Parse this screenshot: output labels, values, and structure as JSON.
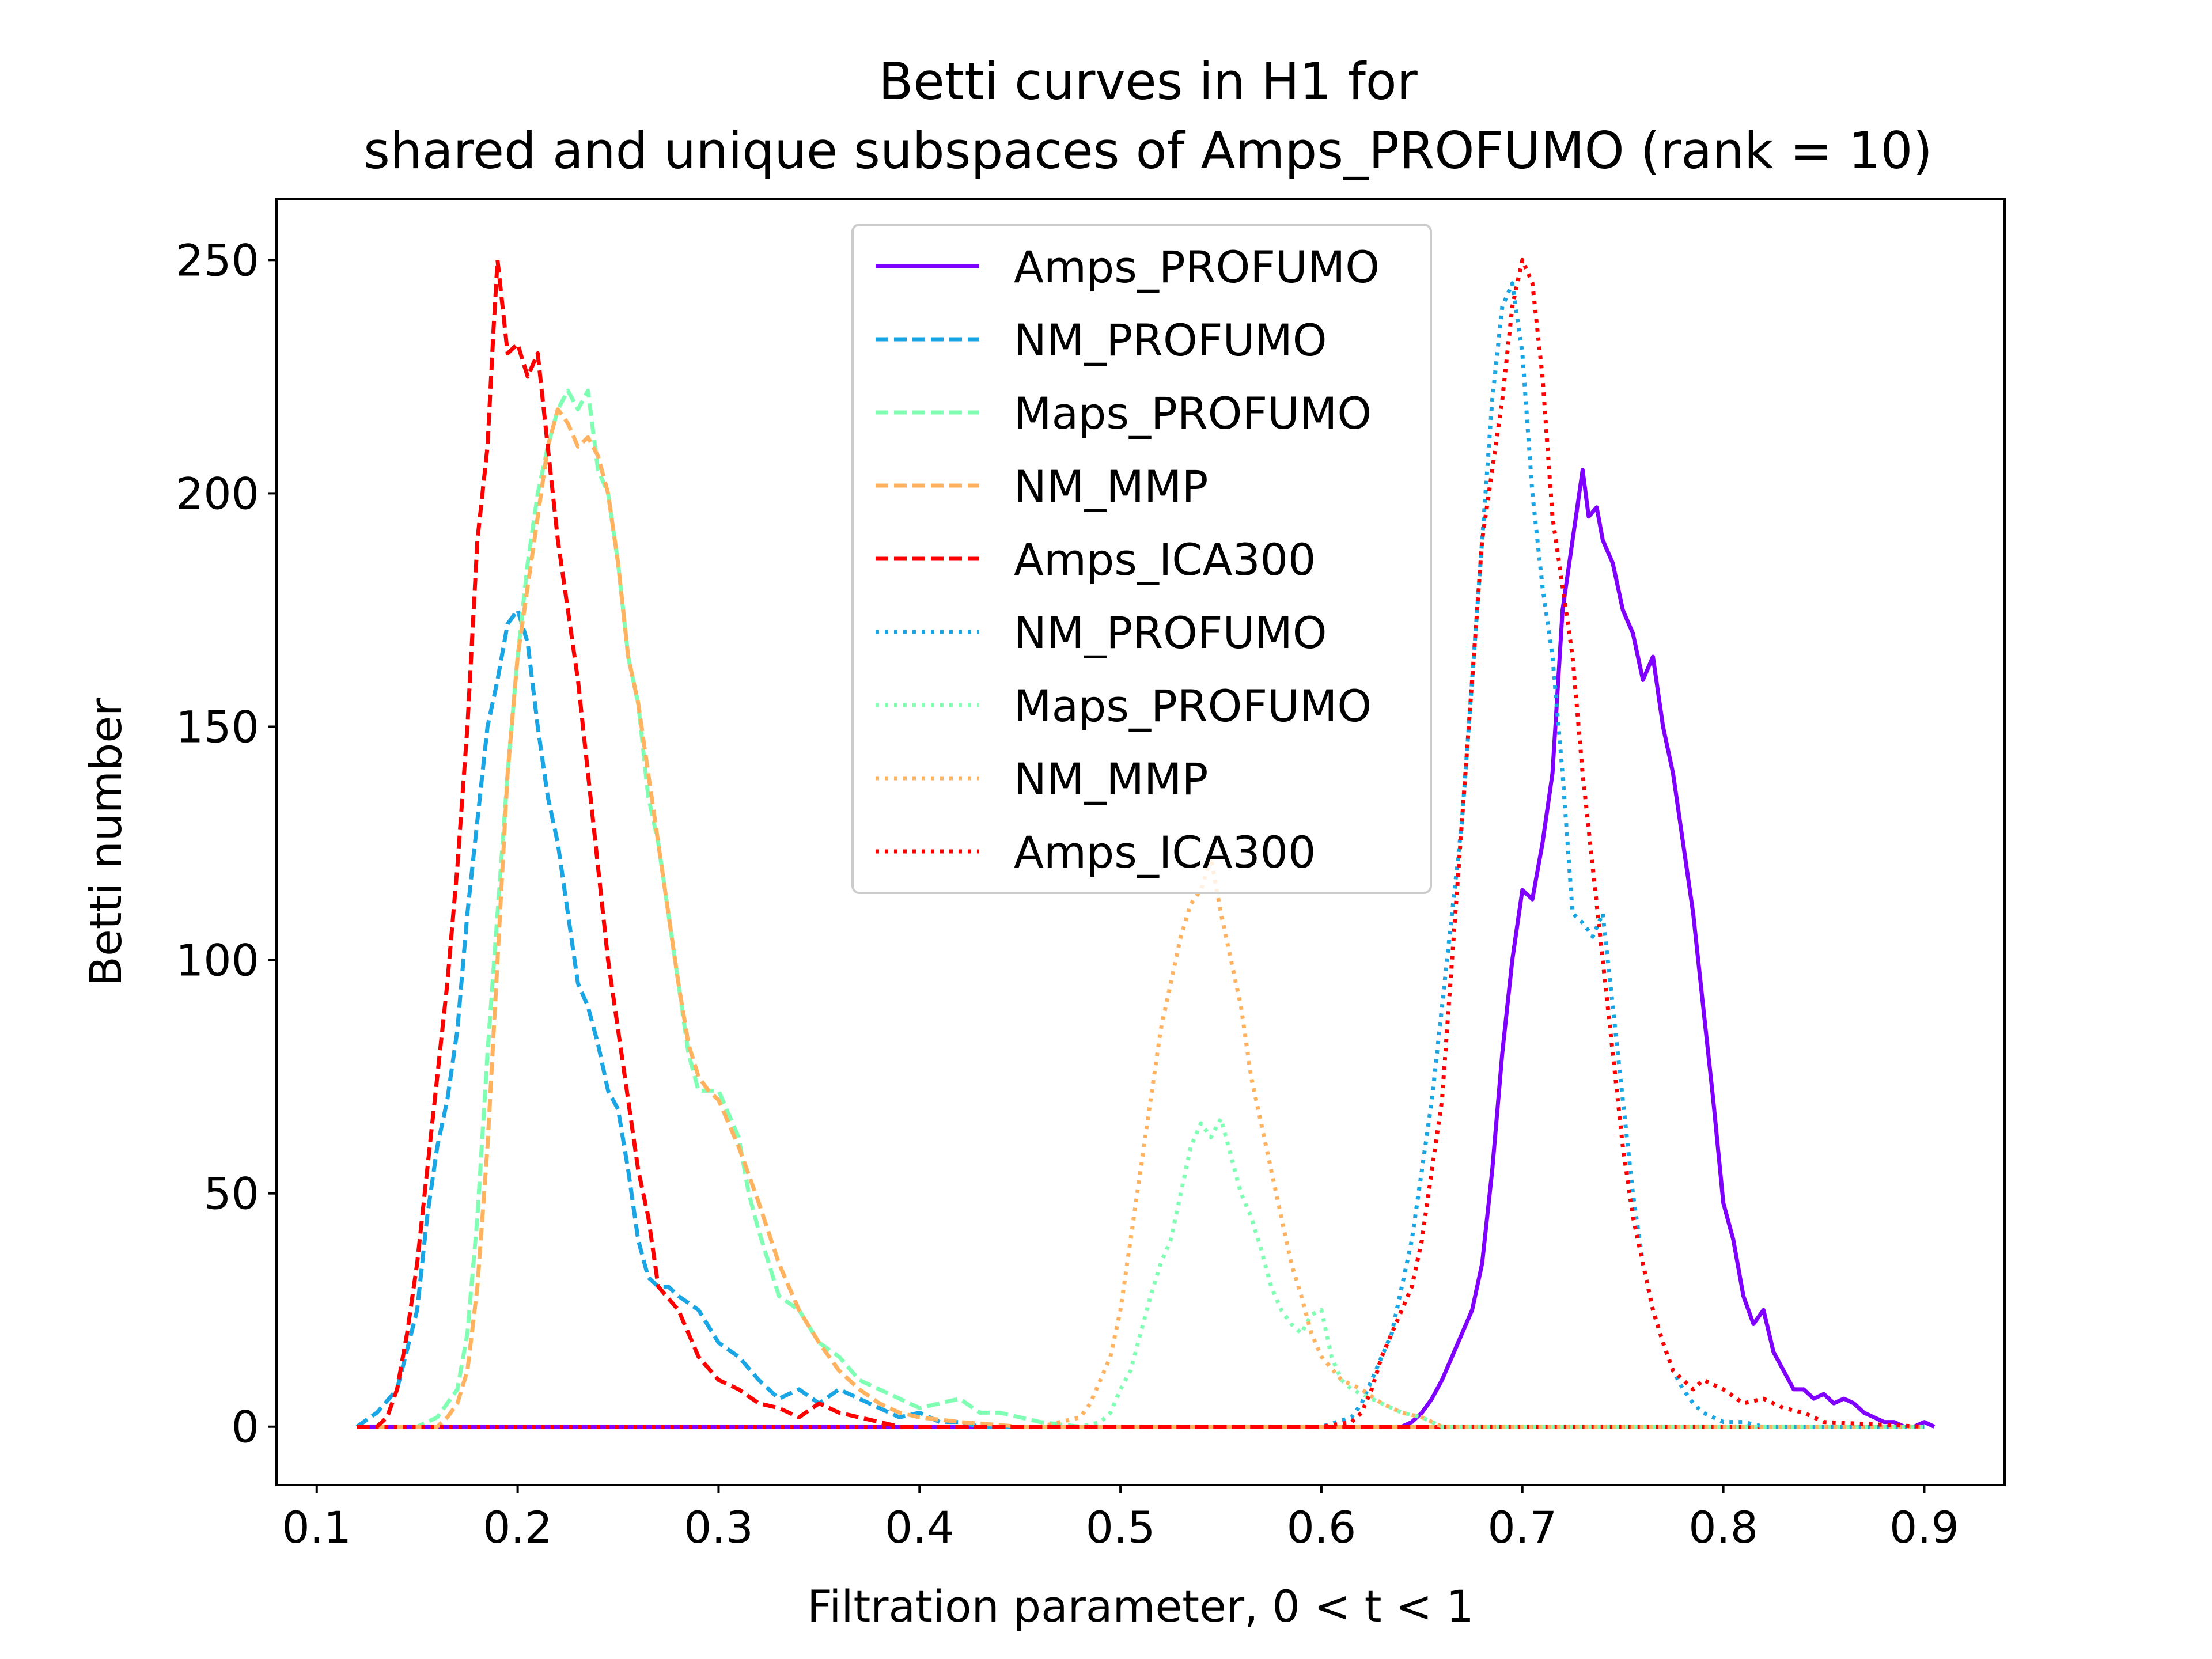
{
  "chart_data": {
    "type": "line",
    "title_line1": "Betti curves in H1 for",
    "title_line2": "shared and unique subspaces of Amps_PROFUMO (rank = 10)",
    "xlabel": "Filtration parameter, 0 < t < 1",
    "ylabel": "Betti number",
    "xlim": [
      0.08,
      0.94
    ],
    "ylim": [
      -12.5,
      263
    ],
    "xticks": [
      0.1,
      0.2,
      0.3,
      0.4,
      0.5,
      0.6,
      0.7,
      0.8,
      0.9
    ],
    "xtick_labels": [
      "0.1",
      "0.2",
      "0.3",
      "0.4",
      "0.5",
      "0.6",
      "0.7",
      "0.8",
      "0.9"
    ],
    "yticks": [
      0,
      50,
      100,
      150,
      200,
      250
    ],
    "ytick_labels": [
      "0",
      "50",
      "100",
      "150",
      "200",
      "250"
    ],
    "grid": false,
    "legend_position": "top-center",
    "series": [
      {
        "name": "Amps_PROFUMO",
        "color": "#8000ff",
        "style": "solid",
        "x": [
          0.12,
          0.64,
          0.645,
          0.65,
          0.655,
          0.66,
          0.665,
          0.67,
          0.675,
          0.68,
          0.685,
          0.69,
          0.695,
          0.7,
          0.705,
          0.71,
          0.715,
          0.72,
          0.725,
          0.73,
          0.733,
          0.737,
          0.74,
          0.745,
          0.75,
          0.755,
          0.76,
          0.765,
          0.77,
          0.775,
          0.78,
          0.785,
          0.79,
          0.795,
          0.8,
          0.805,
          0.81,
          0.815,
          0.82,
          0.825,
          0.83,
          0.835,
          0.84,
          0.845,
          0.85,
          0.855,
          0.86,
          0.865,
          0.87,
          0.875,
          0.88,
          0.885,
          0.89,
          0.895,
          0.9,
          0.905
        ],
        "y": [
          0,
          0,
          1,
          3,
          6,
          10,
          15,
          20,
          25,
          35,
          55,
          80,
          100,
          115,
          113,
          125,
          140,
          175,
          190,
          205,
          195,
          197,
          190,
          185,
          175,
          170,
          160,
          165,
          150,
          140,
          125,
          110,
          90,
          70,
          48,
          40,
          28,
          22,
          25,
          16,
          12,
          8,
          8,
          6,
          7,
          5,
          6,
          5,
          3,
          2,
          1,
          1,
          0,
          0,
          1,
          0
        ]
      },
      {
        "name": "NM_PROFUMO",
        "color": "#1aa6e5",
        "style": "dashed",
        "x": [
          0.12,
          0.13,
          0.14,
          0.15,
          0.155,
          0.16,
          0.165,
          0.17,
          0.175,
          0.18,
          0.185,
          0.19,
          0.195,
          0.2,
          0.205,
          0.21,
          0.215,
          0.22,
          0.225,
          0.23,
          0.235,
          0.24,
          0.245,
          0.25,
          0.255,
          0.26,
          0.265,
          0.27,
          0.275,
          0.28,
          0.29,
          0.3,
          0.31,
          0.32,
          0.33,
          0.34,
          0.35,
          0.36,
          0.37,
          0.38,
          0.39,
          0.4,
          0.41,
          0.42,
          0.43,
          0.45,
          0.5,
          0.6,
          0.7,
          0.8,
          0.9
        ],
        "y": [
          0,
          3,
          8,
          25,
          45,
          60,
          70,
          85,
          110,
          130,
          150,
          160,
          172,
          175,
          168,
          150,
          135,
          125,
          110,
          95,
          90,
          82,
          72,
          68,
          55,
          40,
          32,
          30,
          30,
          28,
          25,
          18,
          15,
          10,
          6,
          8,
          5,
          8,
          6,
          4,
          2,
          3,
          1,
          1,
          0,
          0,
          0,
          0,
          0,
          0,
          0
        ]
      },
      {
        "name": "Maps_PROFUMO",
        "color": "#80ffb4",
        "style": "dashed",
        "x": [
          0.12,
          0.15,
          0.16,
          0.17,
          0.175,
          0.18,
          0.185,
          0.19,
          0.195,
          0.2,
          0.205,
          0.21,
          0.215,
          0.22,
          0.225,
          0.23,
          0.235,
          0.24,
          0.245,
          0.25,
          0.255,
          0.26,
          0.265,
          0.27,
          0.275,
          0.28,
          0.285,
          0.29,
          0.3,
          0.31,
          0.315,
          0.32,
          0.33,
          0.34,
          0.35,
          0.36,
          0.37,
          0.38,
          0.39,
          0.4,
          0.41,
          0.42,
          0.43,
          0.44,
          0.45,
          0.46,
          0.48,
          0.5,
          0.6,
          0.7,
          0.8,
          0.9
        ],
        "y": [
          0,
          0,
          2,
          8,
          20,
          45,
          80,
          110,
          140,
          165,
          185,
          200,
          210,
          218,
          222,
          218,
          222,
          205,
          200,
          185,
          165,
          155,
          135,
          125,
          110,
          95,
          80,
          72,
          72,
          62,
          50,
          42,
          28,
          25,
          18,
          15,
          10,
          8,
          6,
          4,
          5,
          6,
          3,
          3,
          2,
          1,
          0,
          0,
          0,
          0,
          0,
          0
        ]
      },
      {
        "name": "NM_MMP",
        "color": "#ffb360",
        "style": "dashed",
        "x": [
          0.12,
          0.16,
          0.165,
          0.17,
          0.175,
          0.18,
          0.185,
          0.19,
          0.195,
          0.2,
          0.205,
          0.21,
          0.215,
          0.22,
          0.225,
          0.23,
          0.235,
          0.24,
          0.245,
          0.25,
          0.255,
          0.26,
          0.265,
          0.27,
          0.275,
          0.28,
          0.285,
          0.29,
          0.295,
          0.3,
          0.31,
          0.32,
          0.33,
          0.34,
          0.35,
          0.36,
          0.37,
          0.38,
          0.39,
          0.4,
          0.42,
          0.45,
          0.5,
          0.6,
          0.7,
          0.8,
          0.9
        ],
        "y": [
          0,
          0,
          2,
          5,
          12,
          30,
          60,
          100,
          140,
          165,
          180,
          195,
          210,
          218,
          215,
          210,
          212,
          208,
          200,
          185,
          165,
          155,
          140,
          125,
          110,
          95,
          82,
          75,
          72,
          70,
          60,
          48,
          35,
          25,
          18,
          12,
          8,
          5,
          3,
          2,
          1,
          0,
          0,
          0,
          0,
          0,
          0
        ]
      },
      {
        "name": "Amps_ICA300",
        "color": "#ff0000",
        "style": "dashed",
        "x": [
          0.12,
          0.13,
          0.135,
          0.14,
          0.145,
          0.15,
          0.155,
          0.16,
          0.165,
          0.17,
          0.175,
          0.18,
          0.185,
          0.188,
          0.19,
          0.195,
          0.2,
          0.205,
          0.21,
          0.215,
          0.22,
          0.225,
          0.23,
          0.235,
          0.24,
          0.245,
          0.25,
          0.255,
          0.26,
          0.265,
          0.27,
          0.28,
          0.29,
          0.3,
          0.31,
          0.32,
          0.33,
          0.34,
          0.35,
          0.36,
          0.37,
          0.38,
          0.39,
          0.4,
          0.5,
          0.6,
          0.7,
          0.8,
          0.9
        ],
        "y": [
          0,
          0,
          2,
          8,
          20,
          35,
          55,
          75,
          95,
          120,
          150,
          190,
          210,
          235,
          250,
          230,
          232,
          225,
          230,
          210,
          190,
          175,
          160,
          140,
          120,
          100,
          85,
          70,
          55,
          45,
          30,
          25,
          15,
          10,
          8,
          5,
          4,
          2,
          5,
          3,
          2,
          1,
          0,
          0,
          0,
          0,
          0,
          0,
          0
        ]
      },
      {
        "name": "NM_PROFUMO",
        "color": "#1aa6e5",
        "style": "dotted",
        "x": [
          0.12,
          0.5,
          0.6,
          0.615,
          0.62,
          0.625,
          0.63,
          0.635,
          0.64,
          0.645,
          0.65,
          0.655,
          0.66,
          0.665,
          0.67,
          0.675,
          0.68,
          0.685,
          0.69,
          0.695,
          0.7,
          0.705,
          0.71,
          0.715,
          0.72,
          0.725,
          0.73,
          0.735,
          0.74,
          0.745,
          0.75,
          0.755,
          0.76,
          0.765,
          0.77,
          0.775,
          0.78,
          0.785,
          0.79,
          0.795,
          0.8,
          0.81,
          0.82,
          0.9
        ],
        "y": [
          0,
          0,
          0,
          2,
          5,
          10,
          15,
          20,
          30,
          40,
          55,
          70,
          90,
          110,
          130,
          160,
          190,
          220,
          240,
          245,
          230,
          200,
          180,
          165,
          140,
          110,
          108,
          105,
          110,
          90,
          70,
          50,
          35,
          25,
          18,
          12,
          8,
          5,
          3,
          2,
          1,
          1,
          0,
          0
        ]
      },
      {
        "name": "Maps_PROFUMO",
        "color": "#80ffb4",
        "style": "dotted",
        "x": [
          0.12,
          0.48,
          0.49,
          0.495,
          0.5,
          0.505,
          0.51,
          0.515,
          0.52,
          0.525,
          0.53,
          0.535,
          0.54,
          0.545,
          0.55,
          0.555,
          0.56,
          0.565,
          0.57,
          0.575,
          0.58,
          0.585,
          0.59,
          0.595,
          0.6,
          0.605,
          0.61,
          0.615,
          0.62,
          0.63,
          0.64,
          0.65,
          0.66,
          0.7,
          0.8,
          0.9
        ],
        "y": [
          0,
          0,
          1,
          3,
          8,
          12,
          20,
          28,
          35,
          40,
          50,
          60,
          65,
          62,
          66,
          58,
          50,
          45,
          38,
          30,
          25,
          22,
          20,
          24,
          25,
          15,
          10,
          8,
          7,
          5,
          3,
          2,
          0,
          0,
          0,
          0
        ]
      },
      {
        "name": "NM_MMP",
        "color": "#ffb360",
        "style": "dotted",
        "x": [
          0.12,
          0.46,
          0.48,
          0.485,
          0.49,
          0.495,
          0.5,
          0.505,
          0.51,
          0.515,
          0.52,
          0.525,
          0.53,
          0.535,
          0.54,
          0.545,
          0.55,
          0.555,
          0.56,
          0.565,
          0.57,
          0.575,
          0.58,
          0.585,
          0.59,
          0.595,
          0.6,
          0.61,
          0.62,
          0.63,
          0.64,
          0.65,
          0.66,
          0.7,
          0.8,
          0.9
        ],
        "y": [
          0,
          0,
          2,
          5,
          10,
          15,
          25,
          40,
          55,
          70,
          85,
          95,
          105,
          112,
          115,
          122,
          110,
          100,
          90,
          75,
          65,
          55,
          45,
          35,
          28,
          20,
          15,
          10,
          8,
          5,
          3,
          2,
          0,
          0,
          0,
          0
        ]
      },
      {
        "name": "Amps_ICA300",
        "color": "#ff0000",
        "style": "dotted",
        "x": [
          0.12,
          0.6,
          0.615,
          0.62,
          0.625,
          0.63,
          0.635,
          0.64,
          0.645,
          0.65,
          0.655,
          0.66,
          0.665,
          0.67,
          0.675,
          0.68,
          0.685,
          0.69,
          0.695,
          0.7,
          0.705,
          0.71,
          0.715,
          0.72,
          0.725,
          0.73,
          0.735,
          0.74,
          0.745,
          0.75,
          0.755,
          0.76,
          0.765,
          0.77,
          0.775,
          0.78,
          0.785,
          0.79,
          0.8,
          0.81,
          0.82,
          0.83,
          0.84,
          0.85,
          0.9
        ],
        "y": [
          0,
          0,
          1,
          3,
          8,
          15,
          20,
          25,
          30,
          40,
          55,
          70,
          100,
          130,
          160,
          190,
          205,
          220,
          240,
          250,
          245,
          225,
          195,
          180,
          165,
          140,
          120,
          100,
          80,
          60,
          45,
          35,
          25,
          18,
          12,
          10,
          8,
          10,
          8,
          5,
          6,
          4,
          3,
          1,
          0
        ]
      }
    ]
  }
}
